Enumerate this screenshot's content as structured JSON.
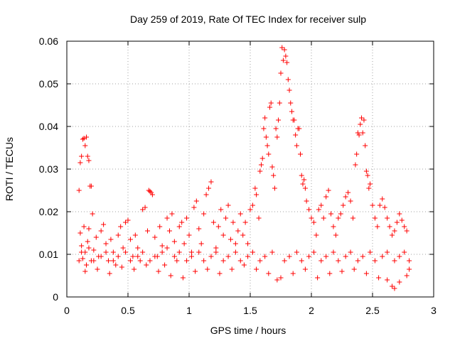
{
  "chart_data": {
    "type": "scatter",
    "title": "Day 259 of 2019, Rate Of TEC Index for receiver sulp",
    "xlabel": "GPS time / hours",
    "ylabel": "ROTI / TECUs",
    "xlim": [
      0,
      3
    ],
    "ylim": [
      0,
      0.06
    ],
    "x_ticks": [
      0,
      0.5,
      1,
      1.5,
      2,
      2.5,
      3
    ],
    "x_tick_labels": [
      "0",
      "0.5",
      "1",
      "1.5",
      "2",
      "2.5",
      "3"
    ],
    "y_ticks": [
      0,
      0.01,
      0.02,
      0.03,
      0.04,
      0.05,
      0.06
    ],
    "y_tick_labels": [
      "0",
      "0.01",
      "0.02",
      "0.03",
      "0.04",
      "0.05",
      "0.06"
    ],
    "grid": true,
    "marker": "+",
    "marker_color": "#ff0000",
    "series": [
      {
        "name": "ROTI",
        "points": [
          [
            0.1,
            0.025
          ],
          [
            0.11,
            0.0315
          ],
          [
            0.12,
            0.033
          ],
          [
            0.13,
            0.037
          ],
          [
            0.14,
            0.0372
          ],
          [
            0.15,
            0.0355
          ],
          [
            0.16,
            0.0375
          ],
          [
            0.17,
            0.033
          ],
          [
            0.18,
            0.032
          ],
          [
            0.19,
            0.026
          ],
          [
            0.2,
            0.026
          ],
          [
            0.21,
            0.0195
          ],
          [
            0.11,
            0.015
          ],
          [
            0.12,
            0.012
          ],
          [
            0.13,
            0.009
          ],
          [
            0.14,
            0.0165
          ],
          [
            0.15,
            0.0105
          ],
          [
            0.16,
            0.0075
          ],
          [
            0.17,
            0.013
          ],
          [
            0.18,
            0.016
          ],
          [
            0.2,
            0.0085
          ],
          [
            0.22,
            0.011
          ],
          [
            0.24,
            0.014
          ],
          [
            0.26,
            0.0095
          ],
          [
            0.28,
            0.0155
          ],
          [
            0.3,
            0.017
          ],
          [
            0.32,
            0.0125
          ],
          [
            0.34,
            0.0085
          ],
          [
            0.36,
            0.0135
          ],
          [
            0.38,
            0.0105
          ],
          [
            0.4,
            0.0075
          ],
          [
            0.42,
            0.0145
          ],
          [
            0.44,
            0.0165
          ],
          [
            0.46,
            0.0115
          ],
          [
            0.48,
            0.0175
          ],
          [
            0.5,
            0.018
          ],
          [
            0.52,
            0.0135
          ],
          [
            0.54,
            0.0095
          ],
          [
            0.56,
            0.0145
          ],
          [
            0.58,
            0.0115
          ],
          [
            0.6,
            0.0085
          ],
          [
            0.62,
            0.0205
          ],
          [
            0.64,
            0.021
          ],
          [
            0.66,
            0.0155
          ],
          [
            0.67,
            0.025
          ],
          [
            0.68,
            0.0248
          ],
          [
            0.69,
            0.0245
          ],
          [
            0.7,
            0.024
          ],
          [
            0.72,
            0.014
          ],
          [
            0.74,
            0.0095
          ],
          [
            0.76,
            0.0165
          ],
          [
            0.78,
            0.012
          ],
          [
            0.8,
            0.0075
          ],
          [
            0.82,
            0.0185
          ],
          [
            0.84,
            0.0155
          ],
          [
            0.86,
            0.0195
          ],
          [
            0.88,
            0.013
          ],
          [
            0.9,
            0.0085
          ],
          [
            0.92,
            0.0165
          ],
          [
            0.94,
            0.0175
          ],
          [
            0.96,
            0.0125
          ],
          [
            0.98,
            0.0185
          ],
          [
            1.0,
            0.0145
          ],
          [
            1.02,
            0.0105
          ],
          [
            1.04,
            0.021
          ],
          [
            1.06,
            0.0225
          ],
          [
            1.08,
            0.016
          ],
          [
            1.1,
            0.0125
          ],
          [
            1.12,
            0.0195
          ],
          [
            1.14,
            0.024
          ],
          [
            1.16,
            0.0255
          ],
          [
            1.18,
            0.027
          ],
          [
            1.2,
            0.0175
          ],
          [
            1.22,
            0.0115
          ],
          [
            1.24,
            0.0165
          ],
          [
            1.26,
            0.0205
          ],
          [
            1.28,
            0.0145
          ],
          [
            1.3,
            0.0185
          ],
          [
            1.32,
            0.0215
          ],
          [
            1.34,
            0.0135
          ],
          [
            1.36,
            0.0175
          ],
          [
            1.38,
            0.0125
          ],
          [
            1.4,
            0.0155
          ],
          [
            1.42,
            0.0195
          ],
          [
            1.44,
            0.0145
          ],
          [
            1.46,
            0.0175
          ],
          [
            1.48,
            0.0125
          ],
          [
            1.5,
            0.0205
          ],
          [
            1.52,
            0.0215
          ],
          [
            1.54,
            0.0255
          ],
          [
            1.55,
            0.024
          ],
          [
            1.57,
            0.0185
          ],
          [
            1.58,
            0.0295
          ],
          [
            1.59,
            0.031
          ],
          [
            1.6,
            0.0325
          ],
          [
            1.61,
            0.0395
          ],
          [
            1.62,
            0.042
          ],
          [
            1.63,
            0.0375
          ],
          [
            1.64,
            0.0355
          ],
          [
            1.65,
            0.0335
          ],
          [
            1.66,
            0.0445
          ],
          [
            1.67,
            0.0455
          ],
          [
            1.68,
            0.0305
          ],
          [
            1.69,
            0.0285
          ],
          [
            1.7,
            0.0255
          ],
          [
            1.71,
            0.0395
          ],
          [
            1.72,
            0.0375
          ],
          [
            1.73,
            0.0415
          ],
          [
            1.74,
            0.0455
          ],
          [
            1.75,
            0.0525
          ],
          [
            1.76,
            0.0585
          ],
          [
            1.77,
            0.0555
          ],
          [
            1.78,
            0.058
          ],
          [
            1.79,
            0.0565
          ],
          [
            1.8,
            0.055
          ],
          [
            1.81,
            0.051
          ],
          [
            1.82,
            0.0485
          ],
          [
            1.83,
            0.0455
          ],
          [
            1.84,
            0.0435
          ],
          [
            1.85,
            0.0415
          ],
          [
            1.86,
            0.0415
          ],
          [
            1.87,
            0.038
          ],
          [
            1.88,
            0.0355
          ],
          [
            1.89,
            0.0395
          ],
          [
            1.9,
            0.0395
          ],
          [
            1.91,
            0.0335
          ],
          [
            1.92,
            0.0285
          ],
          [
            1.93,
            0.0265
          ],
          [
            1.94,
            0.0275
          ],
          [
            1.95,
            0.0255
          ],
          [
            1.96,
            0.0225
          ],
          [
            1.98,
            0.0205
          ],
          [
            2.0,
            0.0185
          ],
          [
            2.02,
            0.0175
          ],
          [
            2.04,
            0.0145
          ],
          [
            2.06,
            0.0205
          ],
          [
            2.08,
            0.0215
          ],
          [
            2.1,
            0.0185
          ],
          [
            2.12,
            0.0235
          ],
          [
            2.14,
            0.025
          ],
          [
            2.16,
            0.0195
          ],
          [
            2.18,
            0.0165
          ],
          [
            2.2,
            0.0145
          ],
          [
            2.22,
            0.0185
          ],
          [
            2.24,
            0.0195
          ],
          [
            2.26,
            0.0215
          ],
          [
            2.28,
            0.0235
          ],
          [
            2.3,
            0.0245
          ],
          [
            2.32,
            0.0225
          ],
          [
            2.34,
            0.0185
          ],
          [
            2.36,
            0.031
          ],
          [
            2.37,
            0.0335
          ],
          [
            2.38,
            0.0385
          ],
          [
            2.39,
            0.038
          ],
          [
            2.4,
            0.0405
          ],
          [
            2.41,
            0.042
          ],
          [
            2.42,
            0.0385
          ],
          [
            2.43,
            0.0415
          ],
          [
            2.44,
            0.0355
          ],
          [
            2.45,
            0.0295
          ],
          [
            2.46,
            0.0285
          ],
          [
            2.47,
            0.0255
          ],
          [
            2.48,
            0.0265
          ],
          [
            2.5,
            0.0215
          ],
          [
            2.52,
            0.0185
          ],
          [
            2.54,
            0.0165
          ],
          [
            2.56,
            0.0215
          ],
          [
            2.58,
            0.023
          ],
          [
            2.6,
            0.021
          ],
          [
            2.62,
            0.0185
          ],
          [
            2.64,
            0.0165
          ],
          [
            2.66,
            0.0145
          ],
          [
            2.68,
            0.0155
          ],
          [
            2.7,
            0.0175
          ],
          [
            2.72,
            0.0195
          ],
          [
            2.74,
            0.018
          ],
          [
            2.76,
            0.0165
          ],
          [
            2.78,
            0.0155
          ],
          [
            0.1,
            0.0085
          ],
          [
            0.15,
            0.006
          ],
          [
            0.25,
            0.0065
          ],
          [
            0.35,
            0.0055
          ],
          [
            0.45,
            0.007
          ],
          [
            0.55,
            0.0065
          ],
          [
            0.65,
            0.0075
          ],
          [
            0.75,
            0.006
          ],
          [
            0.85,
            0.005
          ],
          [
            0.95,
            0.0045
          ],
          [
            1.05,
            0.006
          ],
          [
            1.15,
            0.0065
          ],
          [
            1.25,
            0.0055
          ],
          [
            1.35,
            0.0065
          ],
          [
            1.45,
            0.0075
          ],
          [
            1.55,
            0.0065
          ],
          [
            1.65,
            0.0055
          ],
          [
            1.72,
            0.004
          ],
          [
            1.75,
            0.0045
          ],
          [
            1.85,
            0.0055
          ],
          [
            1.95,
            0.0065
          ],
          [
            2.05,
            0.0045
          ],
          [
            2.15,
            0.0055
          ],
          [
            2.25,
            0.006
          ],
          [
            2.35,
            0.0065
          ],
          [
            2.45,
            0.0055
          ],
          [
            2.55,
            0.0045
          ],
          [
            2.62,
            0.004
          ],
          [
            2.66,
            0.0025
          ],
          [
            2.68,
            0.002
          ],
          [
            2.72,
            0.0035
          ],
          [
            2.78,
            0.005
          ],
          [
            2.8,
            0.0065
          ],
          [
            0.12,
            0.0105
          ],
          [
            0.18,
            0.0115
          ],
          [
            0.22,
            0.0085
          ],
          [
            0.28,
            0.0095
          ],
          [
            0.32,
            0.0105
          ],
          [
            0.38,
            0.0085
          ],
          [
            0.42,
            0.0095
          ],
          [
            0.48,
            0.0105
          ],
          [
            0.52,
            0.0085
          ],
          [
            0.58,
            0.0095
          ],
          [
            0.62,
            0.0105
          ],
          [
            0.68,
            0.0085
          ],
          [
            0.72,
            0.0095
          ],
          [
            0.78,
            0.0105
          ],
          [
            0.82,
            0.0115
          ],
          [
            0.88,
            0.0095
          ],
          [
            0.92,
            0.0105
          ],
          [
            0.98,
            0.0085
          ],
          [
            1.02,
            0.0095
          ],
          [
            1.08,
            0.0105
          ],
          [
            1.12,
            0.0085
          ],
          [
            1.18,
            0.0095
          ],
          [
            1.22,
            0.0105
          ],
          [
            1.28,
            0.0085
          ],
          [
            1.32,
            0.0095
          ],
          [
            1.38,
            0.0105
          ],
          [
            1.42,
            0.0085
          ],
          [
            1.48,
            0.0095
          ],
          [
            1.52,
            0.0105
          ],
          [
            1.58,
            0.0085
          ],
          [
            1.62,
            0.0095
          ],
          [
            1.68,
            0.0105
          ],
          [
            1.78,
            0.0085
          ],
          [
            1.82,
            0.0095
          ],
          [
            1.88,
            0.0105
          ],
          [
            1.92,
            0.0085
          ],
          [
            1.98,
            0.0095
          ],
          [
            2.02,
            0.0105
          ],
          [
            2.08,
            0.0085
          ],
          [
            2.12,
            0.0095
          ],
          [
            2.18,
            0.0105
          ],
          [
            2.22,
            0.0085
          ],
          [
            2.28,
            0.0095
          ],
          [
            2.32,
            0.0105
          ],
          [
            2.38,
            0.0085
          ],
          [
            2.42,
            0.0095
          ],
          [
            2.48,
            0.0105
          ],
          [
            2.52,
            0.0085
          ],
          [
            2.58,
            0.0095
          ],
          [
            2.62,
            0.0105
          ],
          [
            2.68,
            0.0085
          ],
          [
            2.72,
            0.0095
          ],
          [
            2.76,
            0.0105
          ],
          [
            2.8,
            0.0085
          ]
        ]
      }
    ]
  }
}
